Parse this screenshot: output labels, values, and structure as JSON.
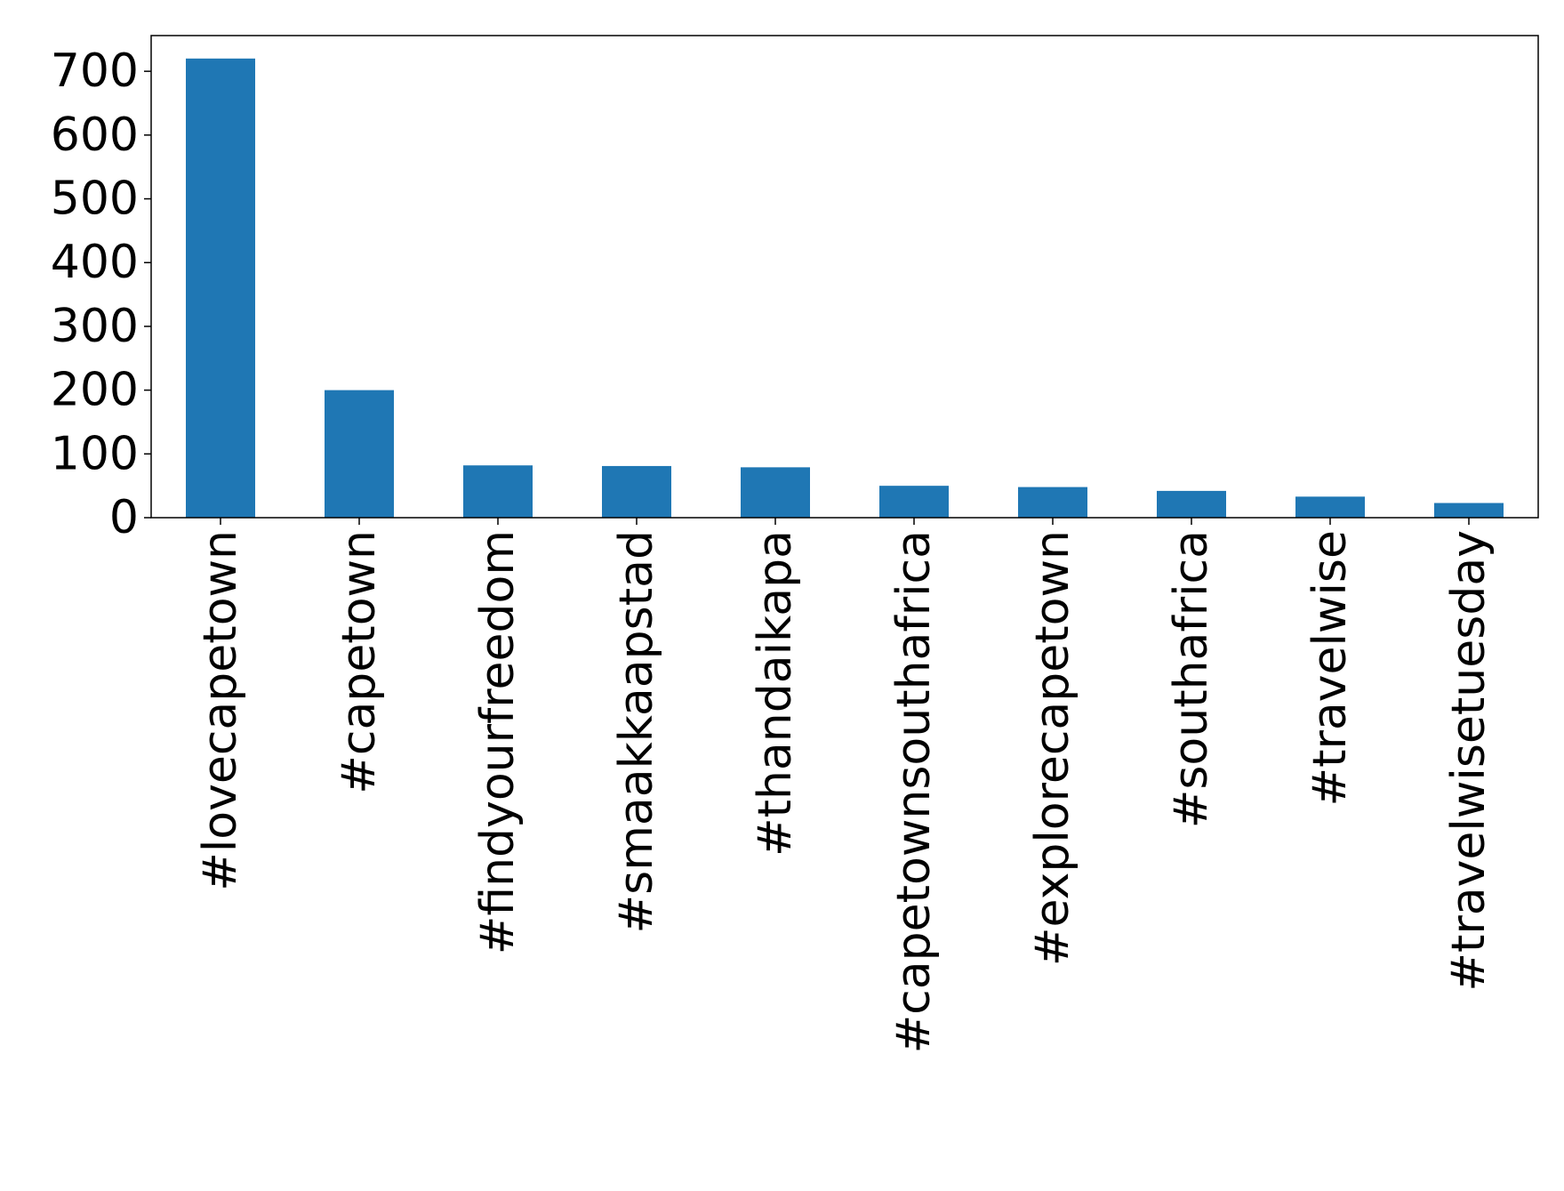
{
  "chart_data": {
    "type": "bar",
    "title": "",
    "xlabel": "",
    "ylabel": "",
    "categories": [
      "#lovecapetown",
      "#capetown",
      "#findyourfreedom",
      "#smaakkaapstad",
      "#thandaikapa",
      "#capetownsouthafrica",
      "#explorecapetown",
      "#southafrica",
      "#travelwise",
      "#travelwisetuesday"
    ],
    "values": [
      720,
      200,
      82,
      81,
      79,
      50,
      48,
      42,
      33,
      23
    ],
    "ylim": [
      0,
      756
    ],
    "yticks": [
      0,
      100,
      200,
      300,
      400,
      500,
      600,
      700
    ],
    "grid": false,
    "legend": "none",
    "bar_color": "#1f77b4"
  }
}
